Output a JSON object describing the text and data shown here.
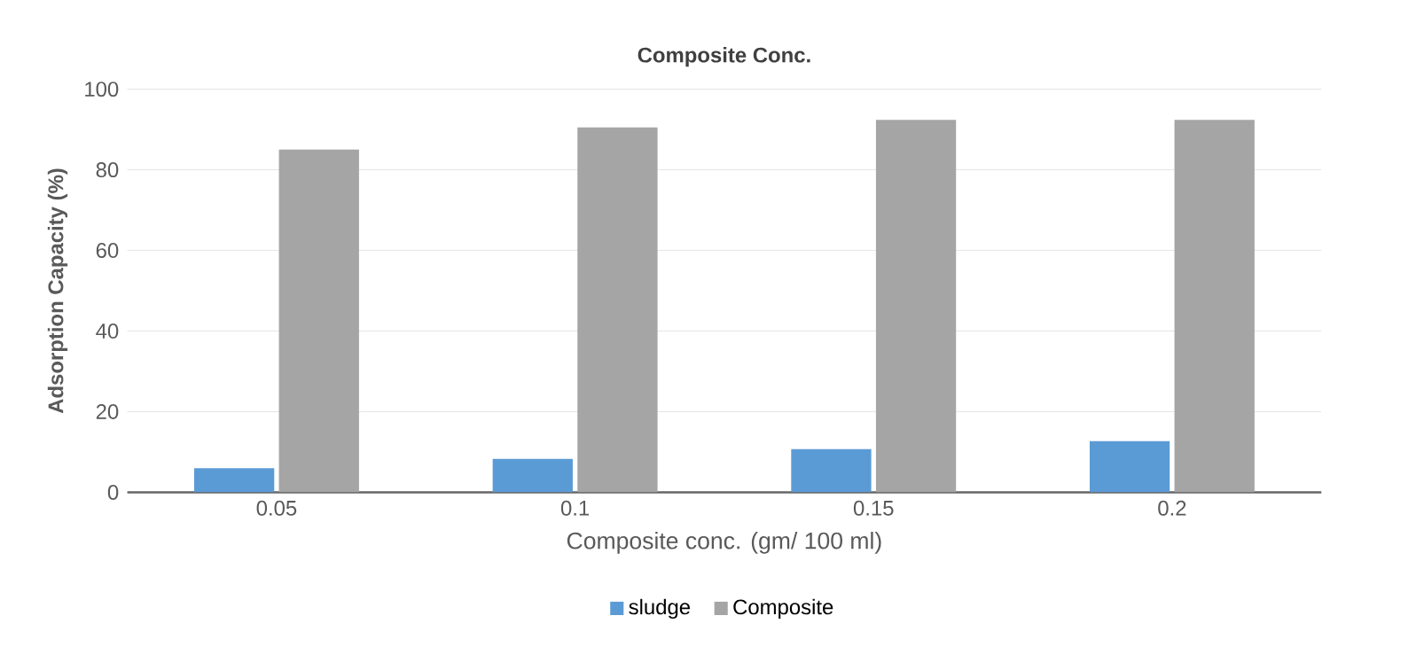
{
  "chart_data": {
    "type": "bar",
    "title": "Composite Conc.",
    "xlabel": "Composite conc. (gm/ 100 ml)",
    "ylabel": "Adsorption Capacity (%)",
    "categories": [
      "0.05",
      "0.1",
      "0.15",
      "0.2"
    ],
    "series": [
      {
        "name": "sludge",
        "color": "#5b9bd5",
        "values": [
          6,
          8.3,
          10.7,
          12.7
        ]
      },
      {
        "name": "Composite",
        "color": "#a5a5a5",
        "values": [
          85,
          90.5,
          92.4,
          92.4
        ]
      }
    ],
    "ylim": [
      0,
      100
    ],
    "yticks": [
      0,
      20,
      40,
      60,
      80,
      100
    ],
    "grid": "y",
    "legend": "bottom"
  }
}
